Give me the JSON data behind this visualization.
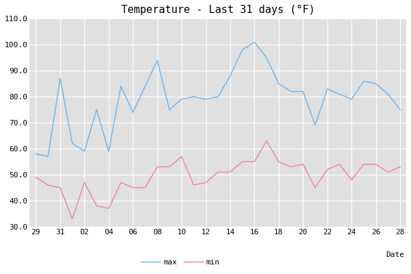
{
  "title": "Temperature - Last 31 days (°F)",
  "xlabel": "Date",
  "ylabel": "",
  "xlim": [
    28.5,
    59.5
  ],
  "ylim": [
    30,
    110
  ],
  "yticks": [
    30.0,
    40.0,
    50.0,
    60.0,
    70.0,
    80.0,
    90.0,
    100.0,
    110.0
  ],
  "xticks": [
    29,
    31,
    33,
    35,
    37,
    39,
    41,
    43,
    45,
    47,
    49,
    51,
    53,
    55,
    57,
    59
  ],
  "xtick_labels": [
    "29",
    "31",
    "02",
    "04",
    "06",
    "08",
    "10",
    "12",
    "14",
    "16",
    "18",
    "20",
    "22",
    "24",
    "26",
    "28"
  ],
  "x": [
    29,
    30,
    31,
    32,
    33,
    34,
    35,
    36,
    37,
    38,
    39,
    40,
    41,
    42,
    43,
    44,
    45,
    46,
    47,
    48,
    49,
    50,
    51,
    52,
    53,
    54,
    55,
    56,
    57,
    58,
    59
  ],
  "max_vals": [
    58,
    57,
    87,
    62,
    59,
    75,
    59,
    84,
    74,
    84,
    94,
    75,
    79,
    80,
    79,
    80,
    88,
    98,
    101,
    95,
    85,
    82,
    82,
    69,
    83,
    81,
    79,
    86,
    85,
    81,
    75
  ],
  "min_vals": [
    49,
    46,
    45,
    33,
    47,
    38,
    37,
    47,
    45,
    45,
    53,
    53,
    57,
    46,
    47,
    51,
    51,
    55,
    55,
    63,
    55,
    53,
    54,
    45,
    52,
    54,
    48,
    54,
    54,
    51,
    53
  ],
  "max_color": "#6ab4e8",
  "min_color": "#f080a0",
  "fig_bg_color": "#ffffff",
  "plot_bg_color": "#e0e0e0",
  "grid_color": "#ffffff",
  "title_fontsize": 11,
  "tick_fontsize": 8,
  "legend_fontsize": 8,
  "linewidth": 1.0
}
